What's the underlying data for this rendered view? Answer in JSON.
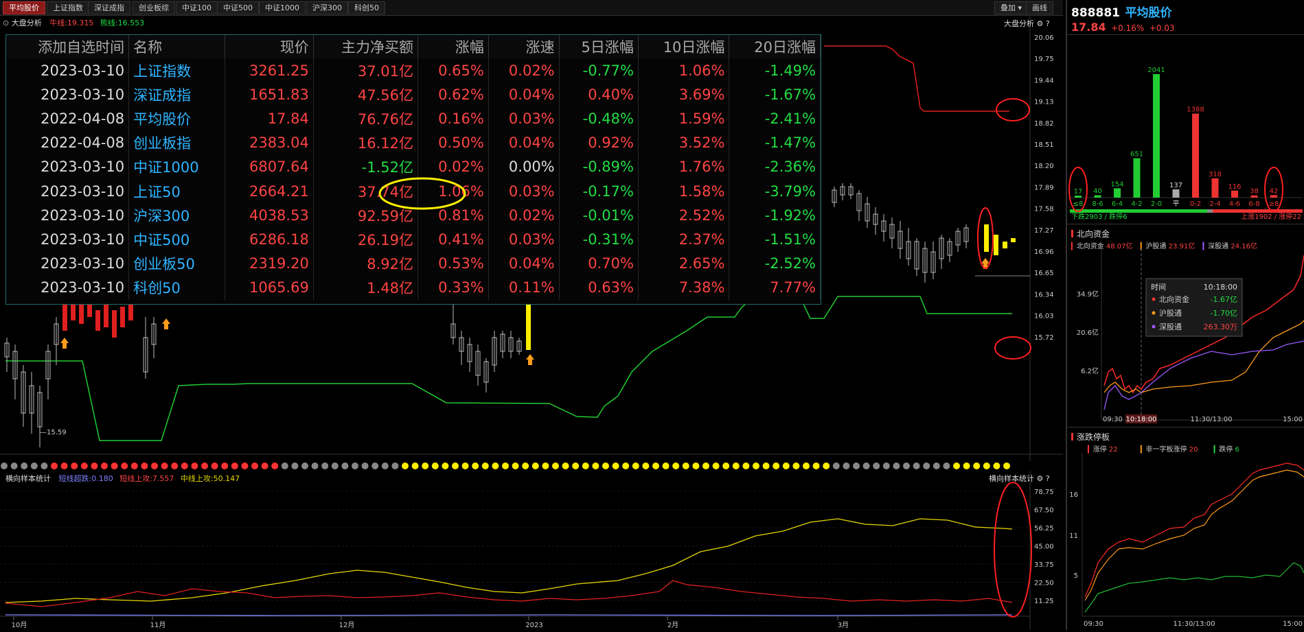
{
  "tabs": [
    "平均股价",
    "上证指数",
    "深证成指",
    "创业板综",
    "中证100",
    "中证500",
    "中证1000",
    "沪深300",
    "科创50"
  ],
  "top_right": {
    "add_label": "叠加",
    "line_label": "画线"
  },
  "main_panel": {
    "title": "大盘分析",
    "legend_niu": "牛线:19.315",
    "legend_xiong": "熊线:16.553",
    "right_title": "大盘分析",
    "low_label": "15.59",
    "y_ticks": [
      "20.06",
      "19.75",
      "19.44",
      "19.13",
      "18.82",
      "18.51",
      "18.20",
      "17.89",
      "17.58",
      "17.27",
      "16.96",
      "16.65",
      "16.34",
      "16.03",
      "15.72"
    ]
  },
  "watchlist": {
    "headers": [
      "添加自选时间",
      "名称",
      "现价",
      "主力净买额",
      "涨幅",
      "涨速",
      "5日涨幅",
      "10日涨幅",
      "20日涨幅"
    ],
    "rows": [
      {
        "date": "2023-03-10",
        "name": "上证指数",
        "price": "3261.25",
        "net": "37.01亿",
        "chg": "0.65%",
        "speed": "0.02%",
        "d5": "-0.77%",
        "d10": "1.06%",
        "d20": "-1.49%"
      },
      {
        "date": "2023-03-10",
        "name": "深证成指",
        "price": "1651.83",
        "net": "47.56亿",
        "chg": "0.62%",
        "speed": "0.04%",
        "d5": "0.40%",
        "d10": "3.69%",
        "d20": "-1.67%"
      },
      {
        "date": "2022-04-08",
        "name": "平均股价",
        "price": "17.84",
        "net": "76.76亿",
        "chg": "0.16%",
        "speed": "0.03%",
        "d5": "-0.48%",
        "d10": "1.59%",
        "d20": "-2.41%"
      },
      {
        "date": "2022-04-08",
        "name": "创业板指",
        "price": "2383.04",
        "net": "16.12亿",
        "chg": "0.50%",
        "speed": "0.04%",
        "d5": "0.92%",
        "d10": "3.52%",
        "d20": "-1.47%"
      },
      {
        "date": "2023-03-10",
        "name": "中证1000",
        "price": "6807.64",
        "net": "-1.52亿",
        "chg": "0.02%",
        "speed": "0.00%",
        "d5": "-0.89%",
        "d10": "1.76%",
        "d20": "-2.36%"
      },
      {
        "date": "2023-03-10",
        "name": "上证50",
        "price": "2664.21",
        "net": "37.74亿",
        "chg": "1.06%",
        "speed": "0.03%",
        "d5": "-0.17%",
        "d10": "1.58%",
        "d20": "-3.79%"
      },
      {
        "date": "2023-03-10",
        "name": "沪深300",
        "price": "4038.53",
        "net": "92.59亿",
        "chg": "0.81%",
        "speed": "0.02%",
        "d5": "-0.01%",
        "d10": "2.52%",
        "d20": "-1.92%"
      },
      {
        "date": "2023-03-10",
        "name": "中证500",
        "price": "6286.18",
        "net": "26.19亿",
        "chg": "0.41%",
        "speed": "0.03%",
        "d5": "-0.31%",
        "d10": "2.37%",
        "d20": "-1.51%"
      },
      {
        "date": "2023-03-10",
        "name": "创业板50",
        "price": "2319.20",
        "net": "8.92亿",
        "chg": "0.53%",
        "speed": "0.04%",
        "d5": "0.70%",
        "d10": "2.65%",
        "d20": "-2.52%"
      },
      {
        "date": "2023-03-10",
        "name": "科创50",
        "price": "1065.69",
        "net": "1.48亿",
        "chg": "0.33%",
        "speed": "0.11%",
        "d5": "0.63%",
        "d10": "7.38%",
        "d20": "7.77%"
      }
    ]
  },
  "sub_panel": {
    "title": "横向样本统计",
    "legend_a": "短线超跌:0.180",
    "legend_b": "短线上攻:7.557",
    "legend_c": "中线上攻:50.147",
    "right_title": "横向样本统计",
    "y_ticks": [
      "78.75",
      "67.50",
      "56.25",
      "45.00",
      "33.75",
      "22.50",
      "11.25"
    ],
    "x_ticks": [
      "10月",
      "11月",
      "12月",
      "2023",
      "2月",
      "3月"
    ]
  },
  "stock_header": {
    "code": "888881",
    "name": "平均股价",
    "price": "17.84",
    "chg": "+0.16%",
    "chg_abs": "+0.03"
  },
  "distribution": {
    "chart_data": {
      "type": "bar",
      "categories": [
        "≤8",
        "8-6",
        "6-4",
        "4-2",
        "2-0",
        "平",
        "0-2",
        "2-4",
        "4-6",
        "6-8",
        "≥8"
      ],
      "values": [
        17,
        40,
        154,
        651,
        2041,
        137,
        1388,
        318,
        116,
        38,
        42
      ]
    },
    "down_label": "下跌2903 / 跌停6",
    "up_label": "上涨1902 / 涨停22"
  },
  "north": {
    "title": "北向资金",
    "legend": [
      {
        "label": "北向资金",
        "value": "48.07亿"
      },
      {
        "label": "沪股通",
        "value": "23.91亿"
      },
      {
        "label": "深股通",
        "value": "24.16亿"
      }
    ],
    "y_ticks": [
      "34.9亿",
      "20.6亿",
      "6.2亿"
    ],
    "x_ticks": [
      "09:30",
      "10:18:00",
      "11:30/13:00",
      "15:00"
    ],
    "tooltip": {
      "time_label": "时间",
      "time": "10:18:00",
      "rows": [
        {
          "label": "北向资金",
          "value": "-1.67亿"
        },
        {
          "label": "沪股通",
          "value": "-1.70亿"
        },
        {
          "label": "深股通",
          "value": "263.30万"
        }
      ]
    }
  },
  "limit": {
    "title": "涨跌停板",
    "legend": [
      {
        "label": "涨停",
        "value": "22"
      },
      {
        "label": "非一字板涨停",
        "value": "20"
      },
      {
        "label": "跌停",
        "value": "6"
      }
    ],
    "y_ticks": [
      "16",
      "11",
      "5"
    ],
    "x_ticks": [
      "09:30",
      "11:30/13:00",
      "15:00"
    ]
  },
  "colors": {
    "up": "#ff4444",
    "down": "#22dd44",
    "cyan": "#2fb4ff",
    "yellow": "#ffee00"
  }
}
